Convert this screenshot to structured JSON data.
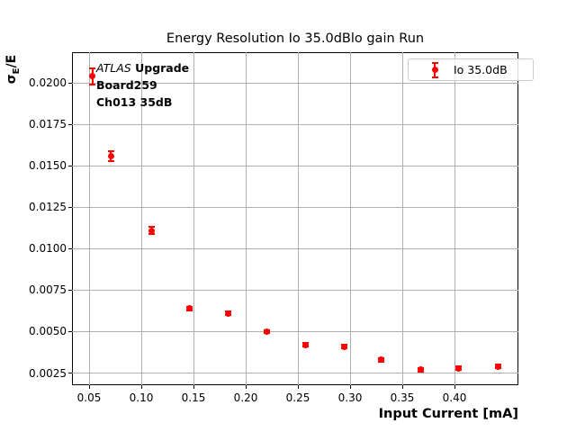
{
  "colors": {
    "accent": "#ff0000",
    "grid": "#b0b0b0",
    "spine": "#000000",
    "legend_border": "#cccccc"
  },
  "chart": {
    "title": "Energy Resolution Io 35.0dBlo gain Run",
    "xlabel": "Input Current [mA]"
  },
  "axes": {
    "ylabel_symbol": "σ",
    "ylabel_sub": "E",
    "ylabel_suffix": "/E"
  },
  "annotation": {
    "line1_italic": "ATLAS",
    "line1_bold": "Upgrade",
    "line2": "Board259",
    "line3": "Ch013 35dB"
  },
  "legend": {
    "label": "Io 35.0dB",
    "position": "upper right"
  },
  "chart_data": {
    "type": "scatter",
    "title": "Energy Resolution Io 35.0dBlo gain Run",
    "xlabel": "Input Current [mA]",
    "ylabel": "σE/E",
    "grid": true,
    "legend_position": "upper right",
    "xlim": [
      0.0336,
      0.4612
    ],
    "ylim": [
      0.00177,
      0.02185
    ],
    "xticks": {
      "values": [
        0.05,
        0.1,
        0.15,
        0.2,
        0.25,
        0.3,
        0.35,
        0.4
      ],
      "labels": [
        "0.05",
        "0.10",
        "0.15",
        "0.20",
        "0.25",
        "0.30",
        "0.35",
        "0.40"
      ]
    },
    "yticks": {
      "values": [
        0.0025,
        0.005,
        0.0075,
        0.01,
        0.0125,
        0.015,
        0.0175,
        0.02
      ],
      "labels": [
        "0.0025",
        "0.0050",
        "0.0075",
        "0.0100",
        "0.0125",
        "0.0150",
        "0.0175",
        "0.0200"
      ]
    },
    "series": [
      {
        "name": "Io 35.0dB",
        "color": "#ff0000",
        "marker": "circle",
        "x": [
          0.053,
          0.071,
          0.11,
          0.146,
          0.183,
          0.22,
          0.257,
          0.294,
          0.33,
          0.368,
          0.404,
          0.442
        ],
        "y": [
          0.0204,
          0.0156,
          0.0111,
          0.0064,
          0.0061,
          0.005,
          0.0042,
          0.0041,
          0.0033,
          0.0027,
          0.0028,
          0.0029
        ],
        "yerr": [
          0.0005,
          0.0003,
          0.0002,
          0.0001,
          0.0001,
          0.0001,
          0.0001,
          0.0001,
          0.0001,
          0.0001,
          0.0001,
          0.0001
        ]
      }
    ]
  }
}
